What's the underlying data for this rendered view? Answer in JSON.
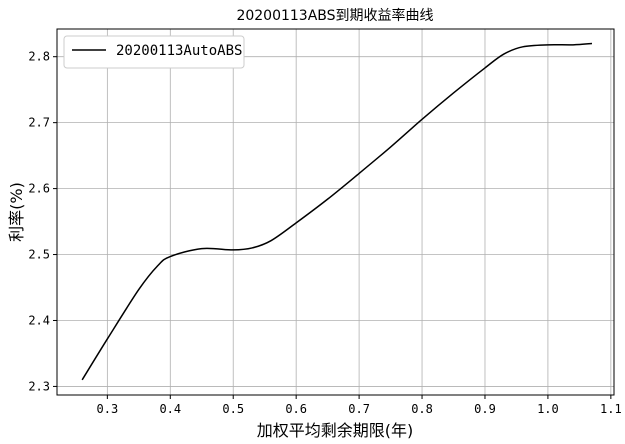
{
  "chart_data": {
    "type": "line",
    "title": "20200113ABS到期收益率曲线",
    "xlabel": "加权平均剩余期限(年)",
    "ylabel": "利率(%)",
    "xlim": [
      0.22,
      1.105
    ],
    "ylim": [
      2.287,
      2.842
    ],
    "xticks": [
      0.3,
      0.4,
      0.5,
      0.6,
      0.7,
      0.8,
      0.9,
      1.0,
      1.1
    ],
    "xtick_labels": [
      "0.3",
      "0.4",
      "0.5",
      "0.6",
      "0.7",
      "0.8",
      "0.9",
      "1.0",
      "1.1"
    ],
    "yticks": [
      2.3,
      2.4,
      2.5,
      2.6,
      2.7,
      2.8
    ],
    "ytick_labels": [
      "2.3",
      "2.4",
      "2.5",
      "2.6",
      "2.7",
      "2.8"
    ],
    "grid": true,
    "legend_position": "top-left",
    "series": [
      {
        "name": "20200113AutoABS",
        "color": "#000000",
        "x": [
          0.26,
          0.3,
          0.35,
          0.38,
          0.4,
          0.45,
          0.5,
          0.53,
          0.56,
          0.6,
          0.65,
          0.7,
          0.75,
          0.8,
          0.85,
          0.9,
          0.93,
          0.96,
          1.0,
          1.04,
          1.07
        ],
        "y": [
          2.31,
          2.372,
          2.447,
          2.483,
          2.497,
          2.509,
          2.507,
          2.51,
          2.521,
          2.548,
          2.584,
          2.623,
          2.663,
          2.705,
          2.745,
          2.783,
          2.804,
          2.815,
          2.818,
          2.818,
          2.82
        ]
      }
    ]
  }
}
